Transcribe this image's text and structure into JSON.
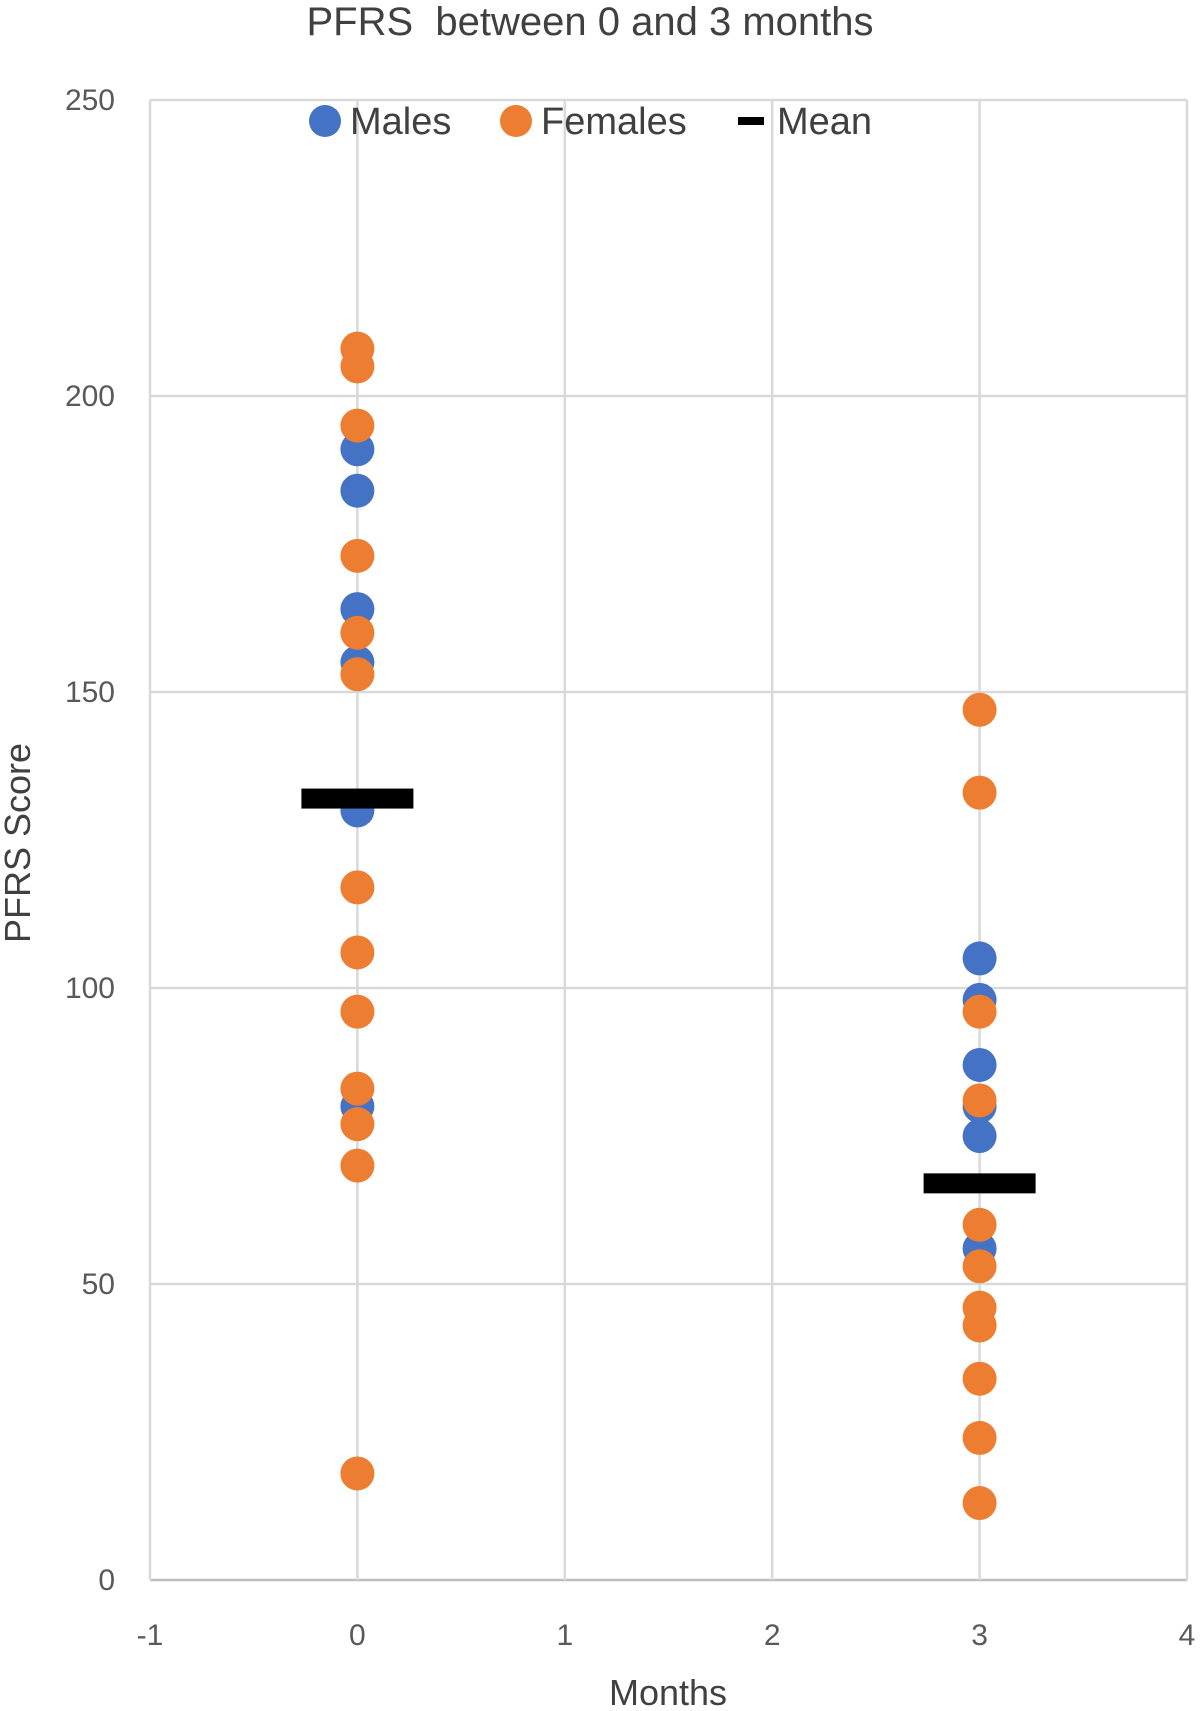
{
  "chart_data": {
    "type": "scatter",
    "title": "PFRS  between 0 and 3 months",
    "xlabel": "Months",
    "ylabel": "PFRS Score",
    "xlim": [
      -1,
      4
    ],
    "ylim": [
      0,
      250
    ],
    "x_ticks": [
      "-1",
      "0",
      "1",
      "2",
      "3",
      "4"
    ],
    "y_ticks": [
      "0",
      "50",
      "100",
      "150",
      "200",
      "250"
    ],
    "grid": true,
    "legend_position": "top",
    "series": [
      {
        "name": "Males",
        "color": "#4472C4",
        "marker": "circle",
        "points": [
          {
            "x": 0,
            "y": 191
          },
          {
            "x": 0,
            "y": 184
          },
          {
            "x": 0,
            "y": 164
          },
          {
            "x": 0,
            "y": 155
          },
          {
            "x": 0,
            "y": 130
          },
          {
            "x": 0,
            "y": 80
          },
          {
            "x": 3,
            "y": 105
          },
          {
            "x": 3,
            "y": 98
          },
          {
            "x": 3,
            "y": 87
          },
          {
            "x": 3,
            "y": 80
          },
          {
            "x": 3,
            "y": 75
          },
          {
            "x": 3,
            "y": 56
          }
        ]
      },
      {
        "name": "Females",
        "color": "#ED7D31",
        "marker": "circle",
        "points": [
          {
            "x": 0,
            "y": 208
          },
          {
            "x": 0,
            "y": 205
          },
          {
            "x": 0,
            "y": 195
          },
          {
            "x": 0,
            "y": 173
          },
          {
            "x": 0,
            "y": 160
          },
          {
            "x": 0,
            "y": 153
          },
          {
            "x": 0,
            "y": 117
          },
          {
            "x": 0,
            "y": 106
          },
          {
            "x": 0,
            "y": 96
          },
          {
            "x": 0,
            "y": 83
          },
          {
            "x": 0,
            "y": 77
          },
          {
            "x": 0,
            "y": 70
          },
          {
            "x": 0,
            "y": 18
          },
          {
            "x": 3,
            "y": 147
          },
          {
            "x": 3,
            "y": 133
          },
          {
            "x": 3,
            "y": 96
          },
          {
            "x": 3,
            "y": 81
          },
          {
            "x": 3,
            "y": 60
          },
          {
            "x": 3,
            "y": 53
          },
          {
            "x": 3,
            "y": 46
          },
          {
            "x": 3,
            "y": 43
          },
          {
            "x": 3,
            "y": 34
          },
          {
            "x": 3,
            "y": 24
          },
          {
            "x": 3,
            "y": 13
          }
        ]
      },
      {
        "name": "Mean",
        "color": "#000000",
        "marker": "dash",
        "points": [
          {
            "x": 0,
            "y": 132
          },
          {
            "x": 3,
            "y": 67
          }
        ]
      }
    ]
  }
}
